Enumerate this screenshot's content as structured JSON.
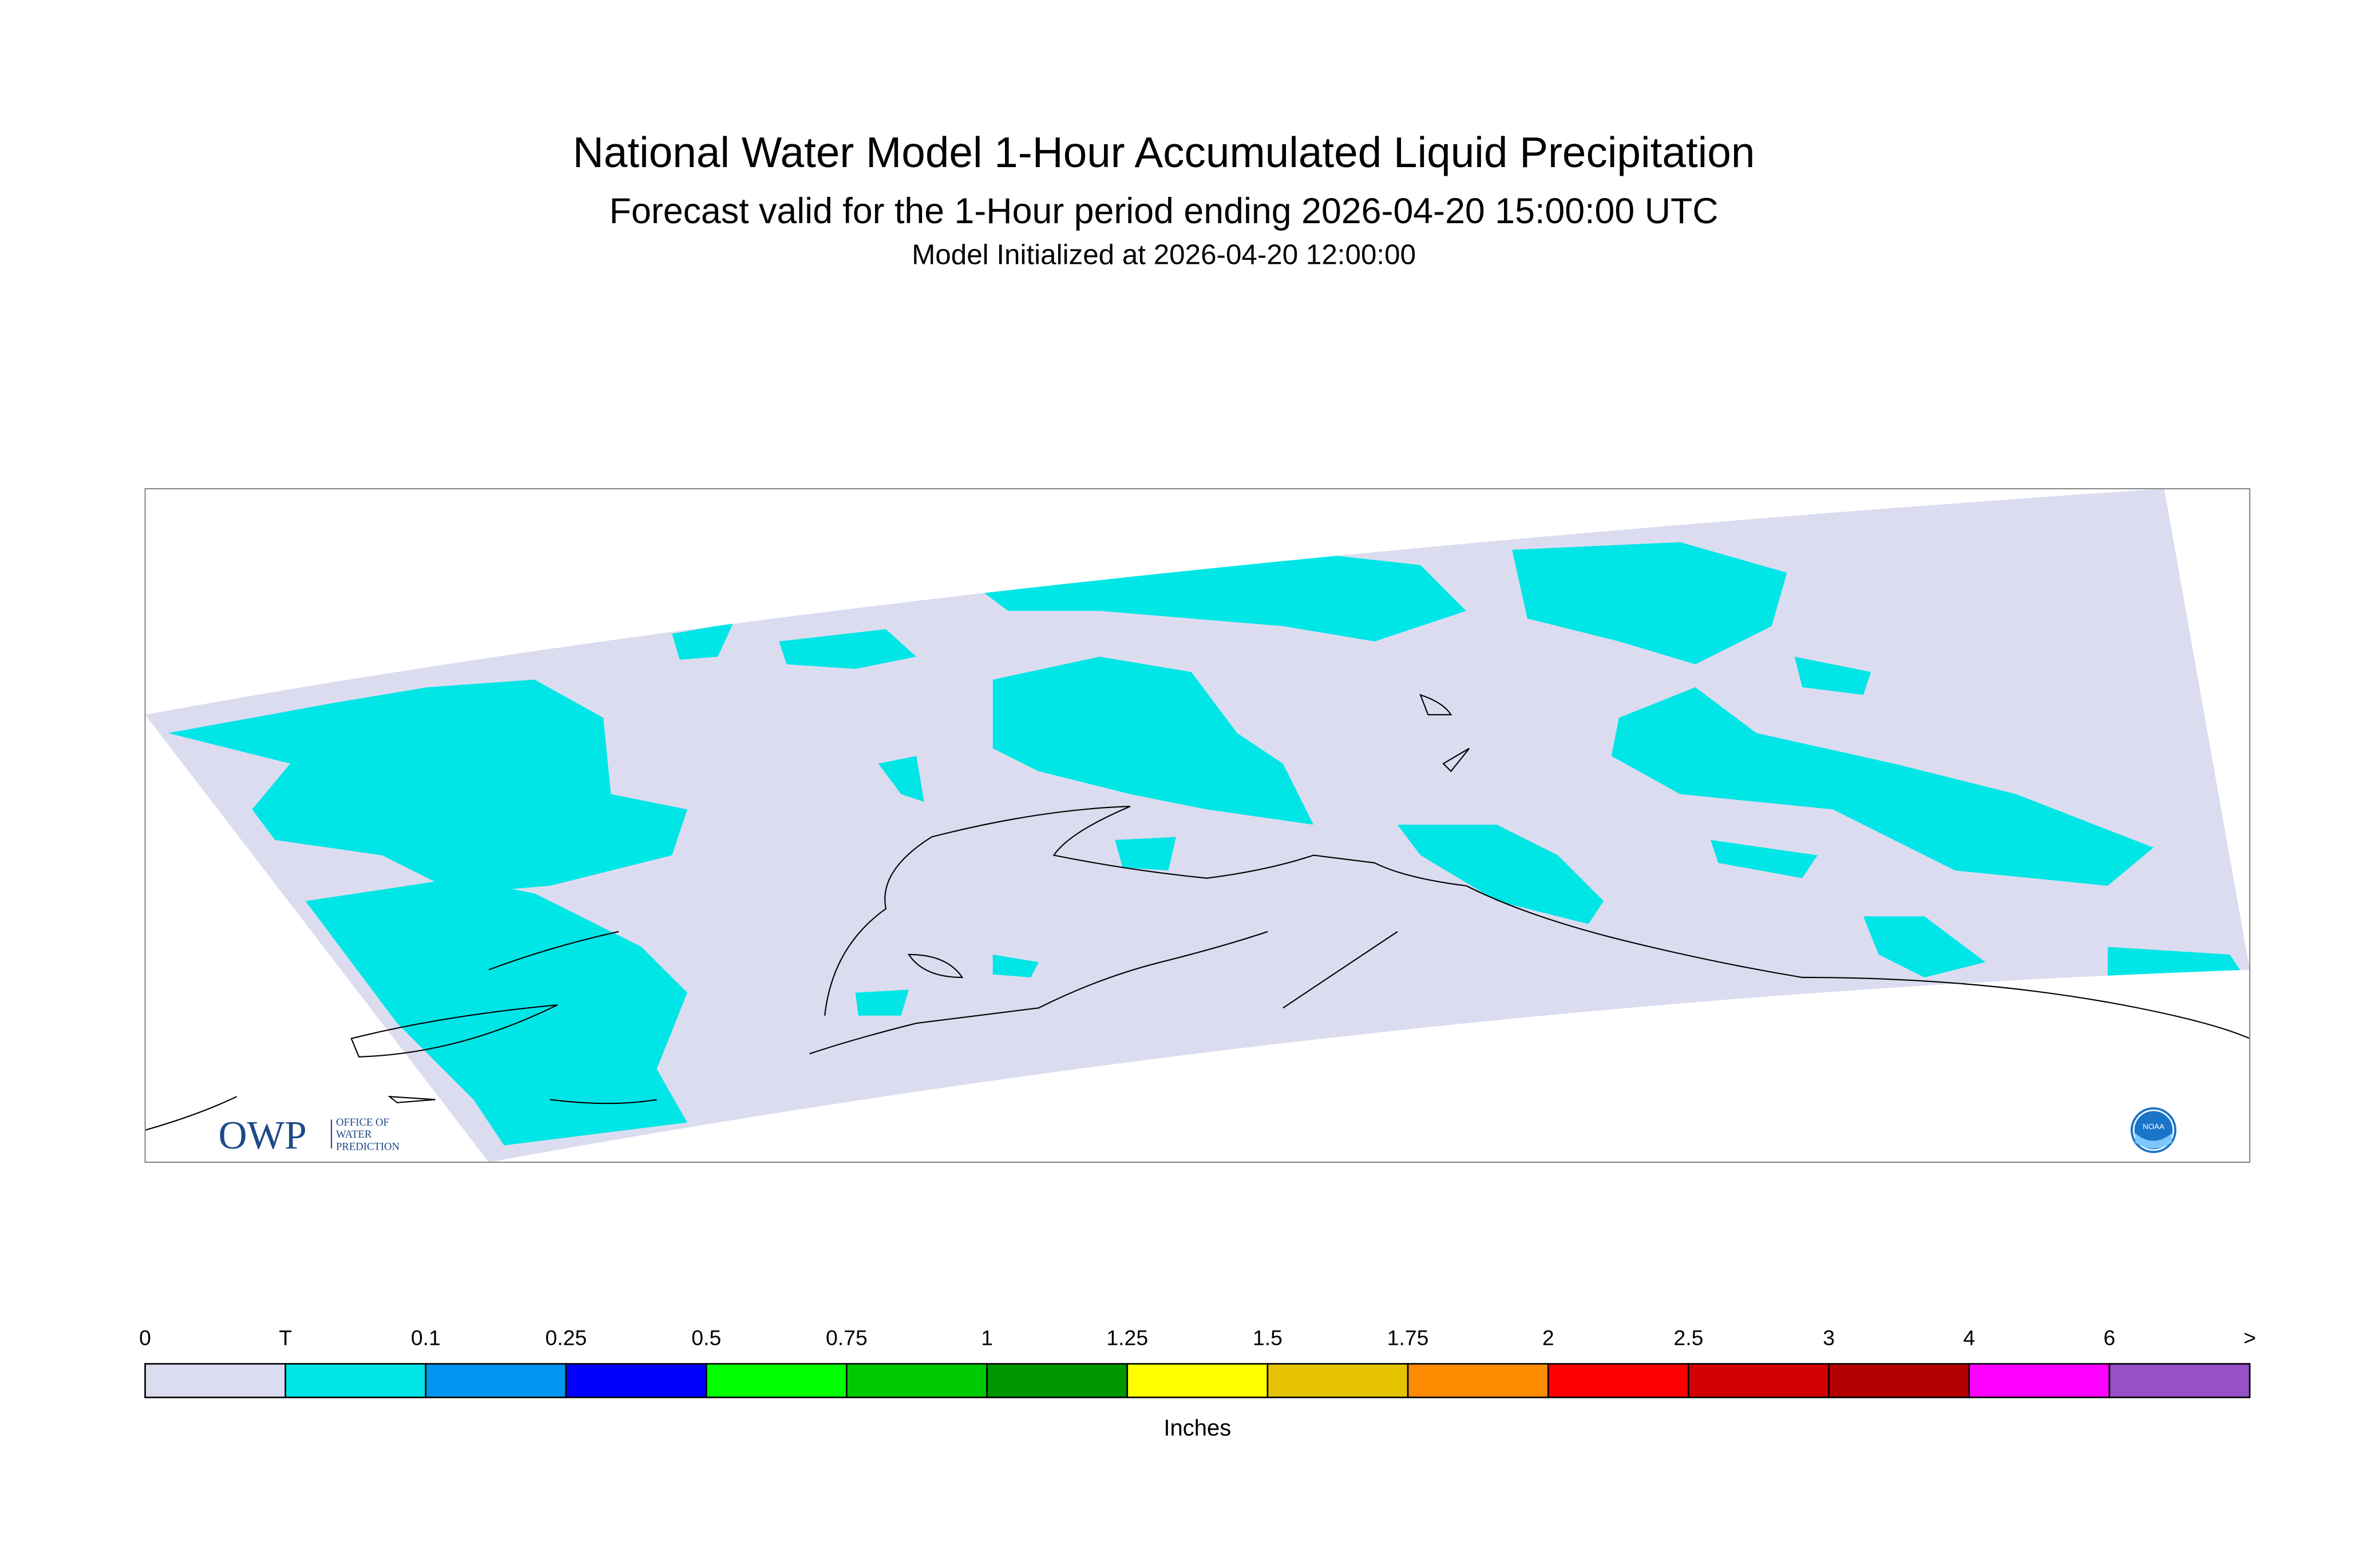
{
  "header": {
    "title": "National Water Model 1-Hour Accumulated Liquid Precipitation",
    "subtitle": "Forecast valid for the 1-Hour period ending 2026-04-20 15:00:00 UTC",
    "initialized": "Model Initialized at 2026-04-20 12:00:00"
  },
  "legend": {
    "labels": [
      "0",
      "T",
      "0.1",
      "0.25",
      "0.5",
      "0.75",
      "1",
      "1.25",
      "1.5",
      "1.75",
      "2",
      "2.5",
      "3",
      "4",
      "6",
      ">"
    ],
    "colors": [
      "#dcdcf0",
      "#00e6e6",
      "#0096f0",
      "#0000ff",
      "#00ff00",
      "#00c800",
      "#009600",
      "#ffff00",
      "#e6c300",
      "#ff8c00",
      "#ff0000",
      "#d20000",
      "#b40000",
      "#ff00ff",
      "#9650c8"
    ],
    "unit": "Inches"
  },
  "logos": {
    "owp": "OWP",
    "owp_lines": [
      "OFFICE OF",
      "WATER",
      "PREDICTION"
    ],
    "noaa": "NOAA"
  }
}
